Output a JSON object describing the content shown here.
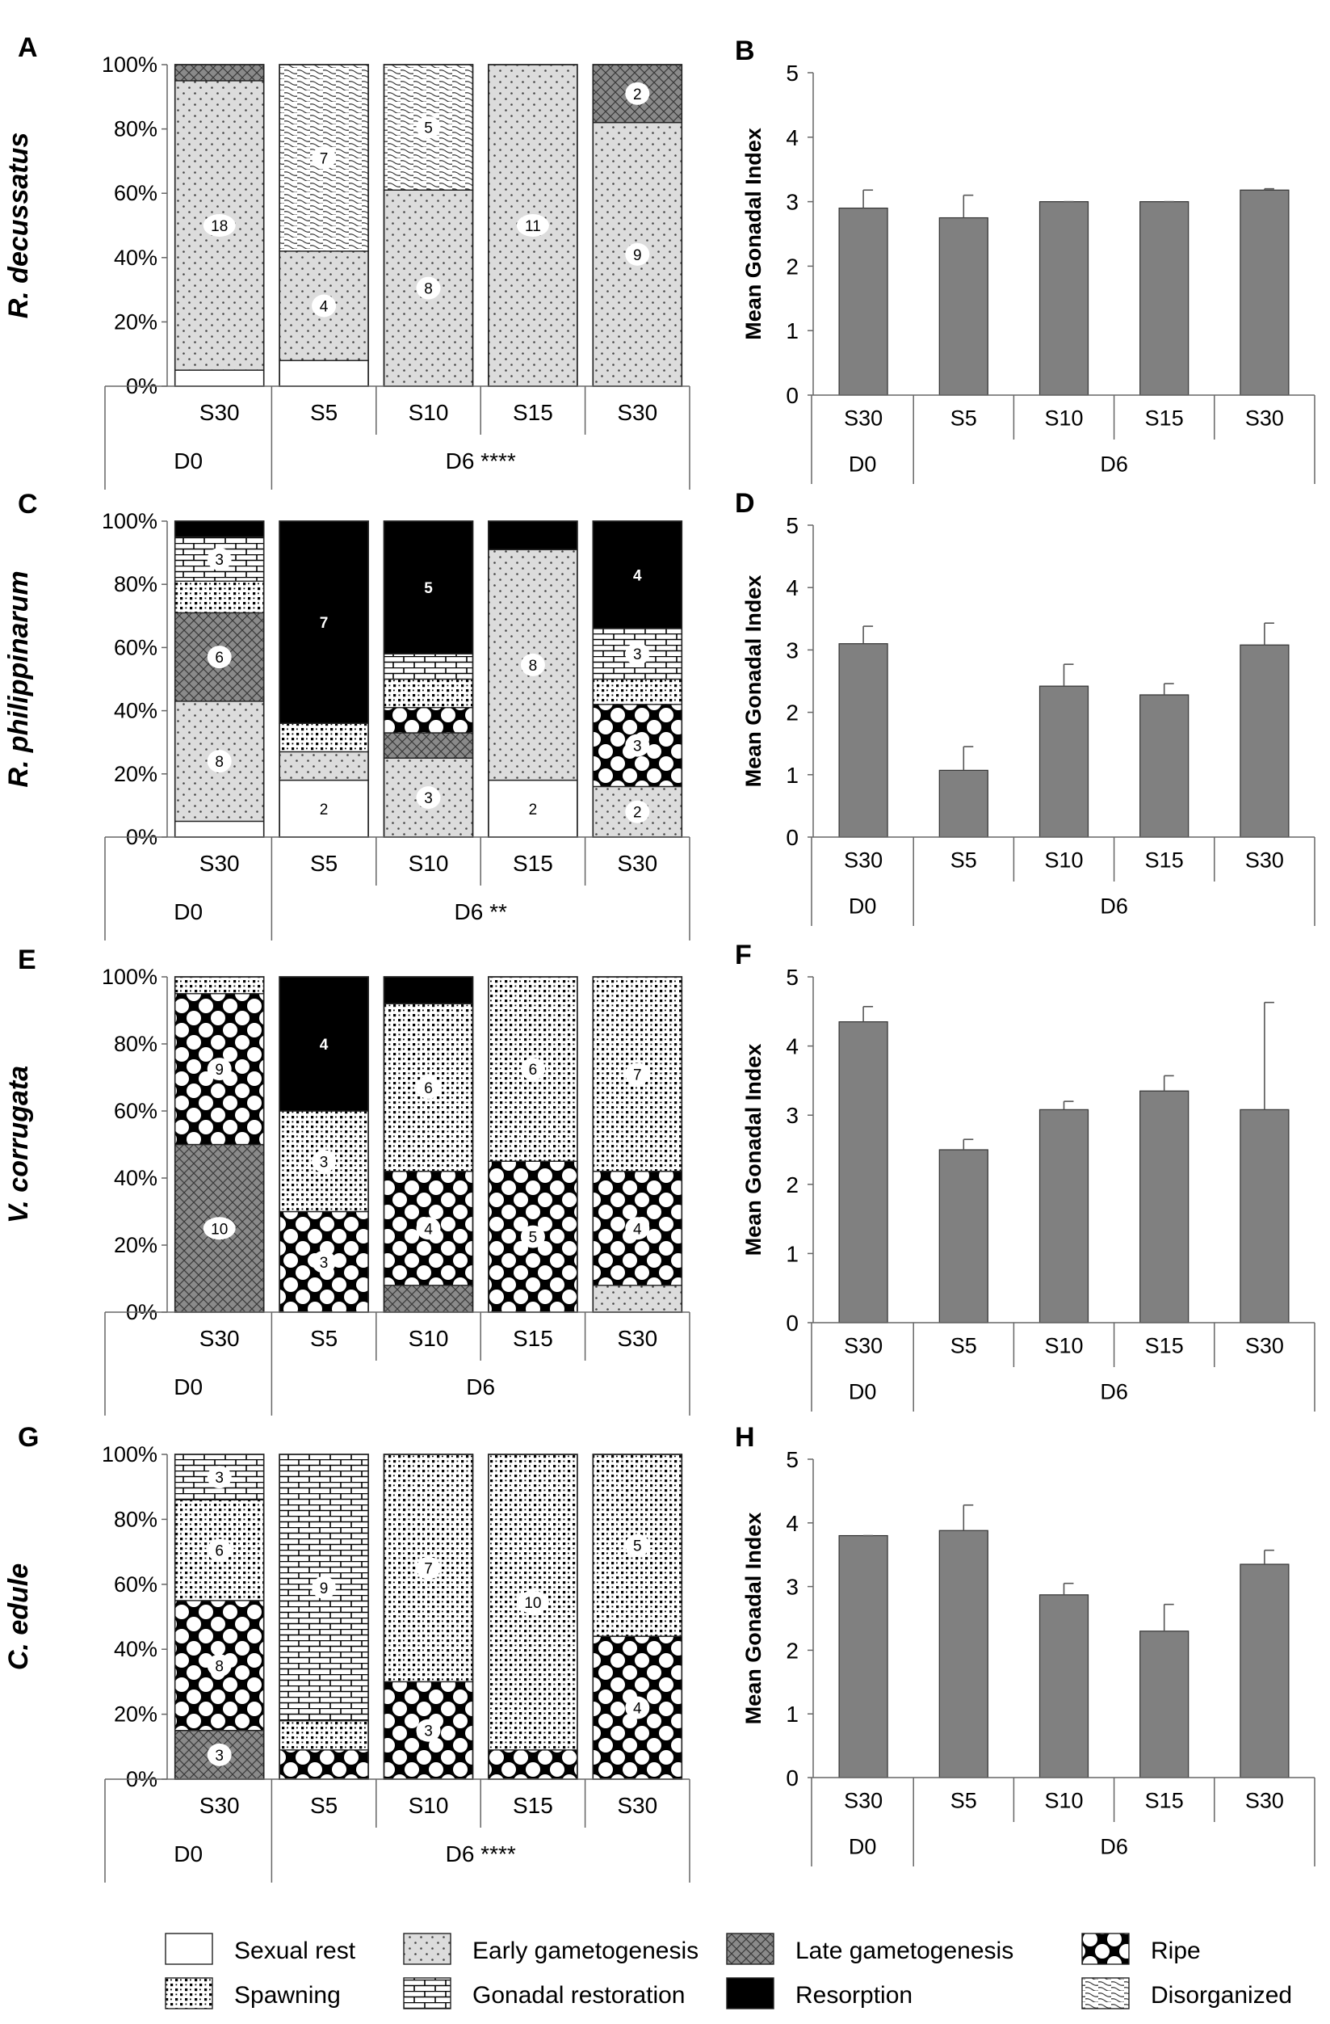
{
  "chart_data": [
    {
      "id": "A",
      "type": "bar",
      "stacked": true,
      "panel_label": "A",
      "species": "R. decussatus",
      "ylim": [
        0,
        100
      ],
      "yticks": [
        "0%",
        "20%",
        "40%",
        "60%",
        "80%",
        "100%"
      ],
      "categories": [
        "S30",
        "S5",
        "S10",
        "S15",
        "S30"
      ],
      "groups": [
        {
          "label": "D0",
          "span": [
            0,
            1
          ]
        },
        {
          "label": "D6 ****",
          "span": [
            1,
            5
          ]
        }
      ],
      "series": [
        {
          "name": "Sexual rest",
          "values": [
            5,
            8,
            0,
            0,
            0
          ]
        },
        {
          "name": "Early gametogenesis",
          "values": [
            90,
            34,
            61,
            100,
            82
          ]
        },
        {
          "name": "Late gametogenesis",
          "values": [
            5,
            0,
            0,
            0,
            18
          ]
        },
        {
          "name": "Disorganized",
          "values": [
            0,
            58,
            39,
            0,
            0
          ]
        }
      ],
      "labels": [
        {
          "bar": 0,
          "series": "Early gametogenesis",
          "text": "18"
        },
        {
          "bar": 1,
          "series": "Early gametogenesis",
          "text": "4"
        },
        {
          "bar": 1,
          "series": "Disorganized",
          "text": "7"
        },
        {
          "bar": 2,
          "series": "Early gametogenesis",
          "text": "8"
        },
        {
          "bar": 2,
          "series": "Disorganized",
          "text": "5"
        },
        {
          "bar": 3,
          "series": "Early gametogenesis",
          "text": "11"
        },
        {
          "bar": 4,
          "series": "Early gametogenesis",
          "text": "9"
        },
        {
          "bar": 4,
          "series": "Late gametogenesis",
          "text": "2"
        }
      ]
    },
    {
      "id": "B",
      "type": "bar",
      "panel_label": "B",
      "ylabel": "Mean Gonadal  Index",
      "ylim": [
        0,
        5
      ],
      "yticks": [
        "0",
        "1",
        "2",
        "3",
        "4",
        "5"
      ],
      "categories": [
        "S30",
        "S5",
        "S10",
        "S15",
        "S30"
      ],
      "groups": [
        {
          "label": "D0",
          "span": [
            0,
            1
          ]
        },
        {
          "label": "D6",
          "span": [
            1,
            5
          ]
        }
      ],
      "values": [
        2.9,
        2.75,
        3.0,
        3.0,
        3.18
      ],
      "errors": [
        0.28,
        0.35,
        0.0,
        0.0,
        0.02
      ]
    },
    {
      "id": "C",
      "type": "bar",
      "stacked": true,
      "panel_label": "C",
      "species": "R. philippinarum",
      "ylim": [
        0,
        100
      ],
      "yticks": [
        "0%",
        "20%",
        "40%",
        "60%",
        "80%",
        "100%"
      ],
      "categories": [
        "S30",
        "S5",
        "S10",
        "S15",
        "S30"
      ],
      "groups": [
        {
          "label": "D0",
          "span": [
            0,
            1
          ]
        },
        {
          "label": "D6 **",
          "span": [
            1,
            5
          ]
        }
      ],
      "series": [
        {
          "name": "Sexual rest",
          "values": [
            5,
            18,
            0,
            18,
            0
          ]
        },
        {
          "name": "Early gametogenesis",
          "values": [
            38,
            9,
            25,
            73,
            16
          ]
        },
        {
          "name": "Late gametogenesis",
          "values": [
            28,
            0,
            8,
            0,
            0
          ]
        },
        {
          "name": "Ripe",
          "values": [
            0,
            0,
            8,
            0,
            26
          ]
        },
        {
          "name": "Spawning",
          "values": [
            10,
            9,
            9,
            0,
            8
          ]
        },
        {
          "name": "Gonadal restoration",
          "values": [
            14,
            0,
            8,
            0,
            16
          ]
        },
        {
          "name": "Resorption",
          "values": [
            5,
            64,
            42,
            9,
            34
          ]
        }
      ],
      "labels": [
        {
          "bar": 0,
          "series": "Early gametogenesis",
          "text": "8"
        },
        {
          "bar": 0,
          "series": "Late gametogenesis",
          "text": "6"
        },
        {
          "bar": 0,
          "series": "Gonadal restoration",
          "text": "3"
        },
        {
          "bar": 1,
          "series": "Sexual rest",
          "text": "2"
        },
        {
          "bar": 1,
          "series": "Resorption",
          "text": "7"
        },
        {
          "bar": 2,
          "series": "Early gametogenesis",
          "text": "3"
        },
        {
          "bar": 2,
          "series": "Resorption",
          "text": "5"
        },
        {
          "bar": 3,
          "series": "Sexual rest",
          "text": "2"
        },
        {
          "bar": 3,
          "series": "Early gametogenesis",
          "text": "8"
        },
        {
          "bar": 4,
          "series": "Early gametogenesis",
          "text": "2"
        },
        {
          "bar": 4,
          "series": "Ripe",
          "text": "3"
        },
        {
          "bar": 4,
          "series": "Gonadal restoration",
          "text": "3"
        },
        {
          "bar": 4,
          "series": "Resorption",
          "text": "4"
        }
      ]
    },
    {
      "id": "D",
      "type": "bar",
      "panel_label": "D",
      "ylabel": "Mean Gonadal  Index",
      "ylim": [
        0,
        5
      ],
      "yticks": [
        "0",
        "1",
        "2",
        "3",
        "4",
        "5"
      ],
      "categories": [
        "S30",
        "S5",
        "S10",
        "S15",
        "S30"
      ],
      "groups": [
        {
          "label": "D0",
          "span": [
            0,
            1
          ]
        },
        {
          "label": "D6",
          "span": [
            1,
            5
          ]
        }
      ],
      "values": [
        3.1,
        1.07,
        2.42,
        2.28,
        3.08
      ],
      "errors": [
        0.28,
        0.38,
        0.35,
        0.18,
        0.35
      ]
    },
    {
      "id": "E",
      "type": "bar",
      "stacked": true,
      "panel_label": "E",
      "species": "V. corrugata",
      "ylim": [
        0,
        100
      ],
      "yticks": [
        "0%",
        "20%",
        "40%",
        "60%",
        "80%",
        "100%"
      ],
      "categories": [
        "S30",
        "S5",
        "S10",
        "S15",
        "S30"
      ],
      "groups": [
        {
          "label": "D0",
          "span": [
            0,
            1
          ]
        },
        {
          "label": "D6",
          "span": [
            1,
            5
          ]
        }
      ],
      "series": [
        {
          "name": "Early gametogenesis",
          "values": [
            0,
            0,
            0,
            0,
            8
          ]
        },
        {
          "name": "Late gametogenesis",
          "values": [
            50,
            0,
            8,
            0,
            0
          ]
        },
        {
          "name": "Ripe",
          "values": [
            45,
            30,
            34,
            45,
            34
          ]
        },
        {
          "name": "Spawning",
          "values": [
            5,
            30,
            50,
            55,
            58
          ]
        },
        {
          "name": "Resorption",
          "values": [
            0,
            40,
            8,
            0,
            0
          ]
        }
      ],
      "labels": [
        {
          "bar": 0,
          "series": "Late gametogenesis",
          "text": "10"
        },
        {
          "bar": 0,
          "series": "Ripe",
          "text": "9"
        },
        {
          "bar": 1,
          "series": "Ripe",
          "text": "3"
        },
        {
          "bar": 1,
          "series": "Spawning",
          "text": "3"
        },
        {
          "bar": 1,
          "series": "Resorption",
          "text": "4"
        },
        {
          "bar": 2,
          "series": "Ripe",
          "text": "4"
        },
        {
          "bar": 2,
          "series": "Spawning",
          "text": "6"
        },
        {
          "bar": 3,
          "series": "Ripe",
          "text": "5"
        },
        {
          "bar": 3,
          "series": "Spawning",
          "text": "6"
        },
        {
          "bar": 4,
          "series": "Ripe",
          "text": "4"
        },
        {
          "bar": 4,
          "series": "Spawning",
          "text": "7"
        }
      ]
    },
    {
      "id": "F",
      "type": "bar",
      "panel_label": "F",
      "ylabel": "Mean Gonadal  Index",
      "ylim": [
        0,
        5
      ],
      "yticks": [
        "0",
        "1",
        "2",
        "3",
        "4",
        "5"
      ],
      "categories": [
        "S30",
        "S5",
        "S10",
        "S15",
        "S30"
      ],
      "groups": [
        {
          "label": "D0",
          "span": [
            0,
            1
          ]
        },
        {
          "label": "D6",
          "span": [
            1,
            5
          ]
        }
      ],
      "values": [
        4.35,
        2.5,
        3.08,
        3.35,
        3.08
      ],
      "errors": [
        0.22,
        0.15,
        0.12,
        0.22,
        1.55
      ]
    },
    {
      "id": "G",
      "type": "bar",
      "stacked": true,
      "panel_label": "G",
      "species": "C. edule",
      "ylim": [
        0,
        100
      ],
      "yticks": [
        "0%",
        "20%",
        "40%",
        "60%",
        "80%",
        "100%"
      ],
      "categories": [
        "S30",
        "S5",
        "S10",
        "S15",
        "S30"
      ],
      "groups": [
        {
          "label": "D0",
          "span": [
            0,
            1
          ]
        },
        {
          "label": "D6 ****",
          "span": [
            1,
            5
          ]
        }
      ],
      "series": [
        {
          "name": "Late gametogenesis",
          "values": [
            15,
            0,
            0,
            0,
            0
          ]
        },
        {
          "name": "Ripe",
          "values": [
            40,
            9,
            30,
            9,
            44
          ]
        },
        {
          "name": "Spawning",
          "values": [
            31,
            9,
            70,
            91,
            56
          ]
        },
        {
          "name": "Gonadal restoration",
          "values": [
            14,
            82,
            0,
            0,
            0
          ]
        }
      ],
      "labels": [
        {
          "bar": 0,
          "series": "Late gametogenesis",
          "text": "3"
        },
        {
          "bar": 0,
          "series": "Ripe",
          "text": "8"
        },
        {
          "bar": 0,
          "series": "Spawning",
          "text": "6"
        },
        {
          "bar": 0,
          "series": "Gonadal restoration",
          "text": "3"
        },
        {
          "bar": 1,
          "series": "Gonadal restoration",
          "text": "9"
        },
        {
          "bar": 2,
          "series": "Ripe",
          "text": "3"
        },
        {
          "bar": 2,
          "series": "Spawning",
          "text": "7"
        },
        {
          "bar": 3,
          "series": "Spawning",
          "text": "10"
        },
        {
          "bar": 4,
          "series": "Ripe",
          "text": "4"
        },
        {
          "bar": 4,
          "series": "Spawning",
          "text": "5"
        }
      ]
    },
    {
      "id": "H",
      "type": "bar",
      "panel_label": "H",
      "ylabel": "Mean Gonadal  Index",
      "ylim": [
        0,
        5
      ],
      "yticks": [
        "0",
        "1",
        "2",
        "3",
        "4",
        "5"
      ],
      "categories": [
        "S30",
        "S5",
        "S10",
        "S15",
        "S30"
      ],
      "groups": [
        {
          "label": "D0",
          "span": [
            0,
            1
          ]
        },
        {
          "label": "D6",
          "span": [
            1,
            5
          ]
        }
      ],
      "values": [
        3.8,
        3.88,
        2.87,
        2.3,
        3.35
      ],
      "errors": [
        0.0,
        0.4,
        0.18,
        0.42,
        0.22
      ]
    }
  ],
  "legend": [
    {
      "name": "Sexual rest"
    },
    {
      "name": "Early gametogenesis"
    },
    {
      "name": "Late gametogenesis"
    },
    {
      "name": "Ripe"
    },
    {
      "name": "Spawning"
    },
    {
      "name": "Gonadal restoration"
    },
    {
      "name": "Resorption"
    },
    {
      "name": "Disorganized"
    }
  ]
}
